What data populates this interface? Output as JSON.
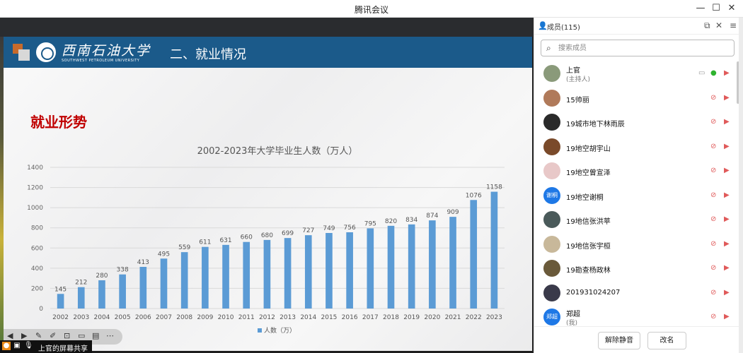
{
  "window": {
    "title": "腾讯会议"
  },
  "slide": {
    "university_cn": "西南石油大学",
    "university_en": "SOUTHWEST PETROLEUM UNIVERSITY",
    "section_title": "二、就业情况",
    "heading": "就业形势"
  },
  "chart_data": {
    "type": "bar",
    "title": "2002-2023年大学毕业生人数（万人）",
    "categories": [
      "2002",
      "2003",
      "2004",
      "2005",
      "2006",
      "2007",
      "2008",
      "2009",
      "2010",
      "2011",
      "2012",
      "2013",
      "2014",
      "2015",
      "2016",
      "2017",
      "2018",
      "2019",
      "2020",
      "2021",
      "2022",
      "2023"
    ],
    "series": [
      {
        "name": "人数（万）",
        "values": [
          145,
          212,
          280,
          338,
          413,
          495,
          559,
          611,
          631,
          660,
          680,
          699,
          727,
          749,
          756,
          795,
          820,
          834,
          874,
          909,
          1076,
          1158
        ],
        "color": "#5b9bd5"
      }
    ],
    "ylim": [
      0,
      1400
    ],
    "yticks": [
      0,
      200,
      400,
      600,
      800,
      1000,
      1200,
      1400
    ],
    "grid": true,
    "legend": "bottom",
    "data_labels": true
  },
  "share": {
    "label": "上官的屏幕共享"
  },
  "panel": {
    "title": "成员(115)",
    "search_placeholder": "搜索成员",
    "members": [
      {
        "name": "上官",
        "sub": "(主持人)",
        "avatar_color": "#8a9a7a",
        "avatar_text": "",
        "mic": "on"
      },
      {
        "name": "15帅丽",
        "sub": "",
        "avatar_color": "#b07a5a",
        "avatar_text": "",
        "mic": "muted"
      },
      {
        "name": "19城市地下林雨辰",
        "sub": "",
        "avatar_color": "#2a2a2a",
        "avatar_text": "",
        "mic": "muted"
      },
      {
        "name": "19地空胡宇山",
        "sub": "",
        "avatar_color": "#7a4a2a",
        "avatar_text": "",
        "mic": "muted"
      },
      {
        "name": "19地空曾宣泽",
        "sub": "",
        "avatar_color": "#e8c8c8",
        "avatar_text": "",
        "mic": "muted"
      },
      {
        "name": "19地空谢桐",
        "sub": "",
        "avatar_color": "#1e78e6",
        "avatar_text": "谢桐",
        "mic": "muted"
      },
      {
        "name": "19地信张洪苹",
        "sub": "",
        "avatar_color": "#4a5a5a",
        "avatar_text": "",
        "mic": "muted"
      },
      {
        "name": "19地信张宇桓",
        "sub": "",
        "avatar_color": "#c8b89a",
        "avatar_text": "",
        "mic": "muted"
      },
      {
        "name": "19勘查杨政林",
        "sub": "",
        "avatar_color": "#6a5a3a",
        "avatar_text": "",
        "mic": "muted"
      },
      {
        "name": "201931024207",
        "sub": "",
        "avatar_color": "#3a3a4a",
        "avatar_text": "",
        "mic": "muted"
      },
      {
        "name": "郑超",
        "sub": "(我)",
        "avatar_color": "#1e78e6",
        "avatar_text": "郑超",
        "mic": "muted"
      }
    ],
    "unmute_all_label": "解除静音",
    "rename_label": "改名"
  }
}
